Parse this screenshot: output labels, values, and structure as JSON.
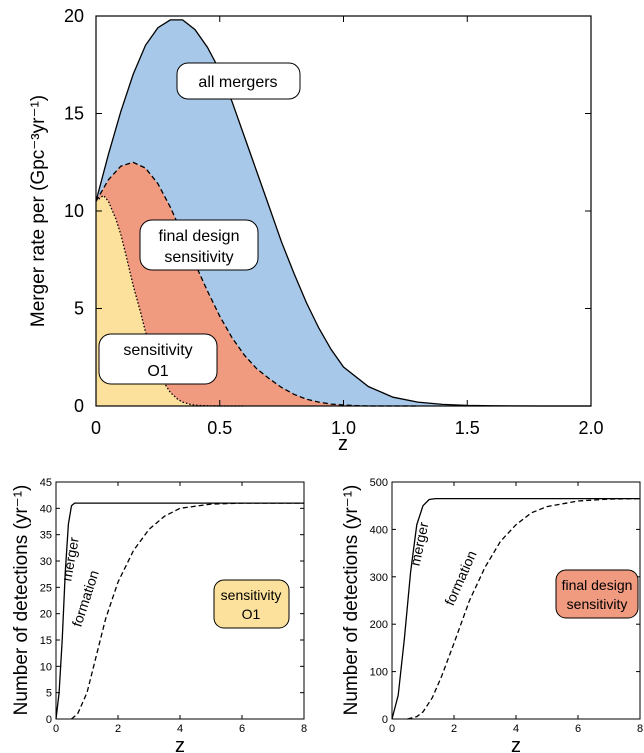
{
  "chart_data": [
    {
      "type": "area",
      "xlabel": "z",
      "ylabel": "Merger rate per (Gpc⁻³yr⁻¹)",
      "xlim": [
        0,
        2.0
      ],
      "ylim": [
        0,
        20
      ],
      "xticks": [
        0,
        0.5,
        1.0,
        1.5,
        2.0
      ],
      "xtick_labels": [
        "0",
        "0.5",
        "1.0",
        "1.5",
        "2.0"
      ],
      "yticks": [
        0,
        5,
        10,
        15,
        20
      ],
      "ytick_labels": [
        "0",
        "5",
        "10",
        "15",
        "20"
      ],
      "grid": false,
      "series": [
        {
          "name": "all mergers",
          "color": "#a7c8e8",
          "line_style": "solid",
          "x": [
            0,
            0.05,
            0.1,
            0.15,
            0.2,
            0.25,
            0.3,
            0.35,
            0.4,
            0.45,
            0.5,
            0.55,
            0.6,
            0.65,
            0.7,
            0.75,
            0.8,
            0.85,
            0.9,
            0.95,
            1.0,
            1.1,
            1.2,
            1.3,
            1.4,
            1.5,
            1.6,
            1.8,
            2.0
          ],
          "values": [
            10.5,
            12.9,
            15.1,
            17.0,
            18.5,
            19.4,
            19.8,
            19.8,
            19.3,
            18.4,
            17.2,
            15.6,
            13.8,
            12.0,
            10.2,
            8.4,
            6.8,
            5.3,
            4.0,
            2.9,
            2.0,
            1.0,
            0.45,
            0.2,
            0.08,
            0.03,
            0.01,
            0.0,
            0.0
          ]
        },
        {
          "name": "final design sensitivity",
          "color": "#f09a80",
          "line_style": "dashed",
          "x": [
            0,
            0.05,
            0.1,
            0.15,
            0.2,
            0.25,
            0.3,
            0.35,
            0.4,
            0.45,
            0.5,
            0.55,
            0.6,
            0.65,
            0.7,
            0.75,
            0.8,
            0.85,
            0.9,
            0.95,
            1.0,
            1.05,
            1.1,
            1.2,
            1.3
          ],
          "values": [
            10.5,
            11.6,
            12.3,
            12.5,
            12.2,
            11.4,
            10.2,
            8.8,
            7.3,
            5.9,
            4.6,
            3.5,
            2.6,
            1.9,
            1.4,
            0.95,
            0.6,
            0.35,
            0.2,
            0.1,
            0.05,
            0.02,
            0.0,
            0.0,
            0.0
          ]
        },
        {
          "name": "sensitivity O1",
          "color": "#fbe19b",
          "line_style": "dotted",
          "x": [
            0,
            0.03,
            0.05,
            0.08,
            0.1,
            0.12,
            0.15,
            0.18,
            0.2,
            0.23,
            0.25,
            0.28,
            0.3,
            0.33,
            0.35,
            0.38,
            0.4,
            0.45,
            0.5,
            0.55,
            0.6
          ],
          "values": [
            10.5,
            10.8,
            10.5,
            9.6,
            8.8,
            7.8,
            6.2,
            4.8,
            3.8,
            2.6,
            1.9,
            1.1,
            0.7,
            0.35,
            0.2,
            0.08,
            0.04,
            0.01,
            0.0,
            0.0,
            0.0
          ]
        }
      ],
      "annotations": [
        "all mergers",
        "final design\nsensitivity",
        "sensitivity\nO1"
      ]
    },
    {
      "type": "line",
      "xlabel": "z",
      "ylabel": "Number of detections (yr⁻¹)",
      "xlim": [
        0,
        8
      ],
      "ylim": [
        0,
        45
      ],
      "xticks": [
        0,
        2,
        4,
        6,
        8
      ],
      "yticks": [
        0,
        5,
        10,
        15,
        20,
        25,
        30,
        35,
        40,
        45
      ],
      "grid": false,
      "series": [
        {
          "name": "merger",
          "line_style": "solid",
          "x": [
            0,
            0.1,
            0.2,
            0.3,
            0.4,
            0.5,
            0.6,
            0.8,
            1.0,
            2,
            4,
            6,
            8
          ],
          "values": [
            0,
            5,
            15,
            28,
            37,
            40.5,
            41,
            41,
            41,
            41,
            41,
            41,
            41
          ]
        },
        {
          "name": "formation",
          "line_style": "dashed",
          "x": [
            0.5,
            0.7,
            1.0,
            1.3,
            1.6,
            2.0,
            2.5,
            3.0,
            3.5,
            4.0,
            5.0,
            6.0,
            7.0,
            8.0
          ],
          "values": [
            0,
            1,
            5,
            12,
            19,
            26,
            32,
            36,
            38.5,
            40,
            40.8,
            41,
            41,
            41
          ]
        }
      ],
      "annotation": "sensitivity\nO1",
      "annotation_color": "#fbe19b"
    },
    {
      "type": "line",
      "xlabel": "z",
      "ylabel": "Number of detections (yr⁻¹)",
      "xlim": [
        0,
        8
      ],
      "ylim": [
        0,
        500
      ],
      "xticks": [
        0,
        2,
        4,
        6,
        8
      ],
      "yticks": [
        0,
        100,
        200,
        300,
        400,
        500
      ],
      "grid": false,
      "series": [
        {
          "name": "merger",
          "line_style": "solid",
          "x": [
            0,
            0.2,
            0.4,
            0.6,
            0.8,
            1.0,
            1.2,
            1.4,
            1.6,
            2,
            4,
            6,
            8
          ],
          "values": [
            0,
            50,
            170,
            310,
            410,
            450,
            463,
            465,
            465,
            465,
            465,
            465,
            465
          ]
        },
        {
          "name": "formation",
          "line_style": "dashed",
          "x": [
            0.5,
            0.8,
            1.0,
            1.3,
            1.6,
            2.0,
            2.5,
            3.0,
            3.5,
            4.0,
            4.5,
            5.0,
            6.0,
            7.0,
            8.0
          ],
          "values": [
            0,
            5,
            15,
            45,
            90,
            160,
            250,
            320,
            375,
            410,
            435,
            448,
            460,
            464,
            465
          ]
        }
      ],
      "annotation": "final design\nsensitivity",
      "annotation_color": "#f09a80"
    }
  ]
}
